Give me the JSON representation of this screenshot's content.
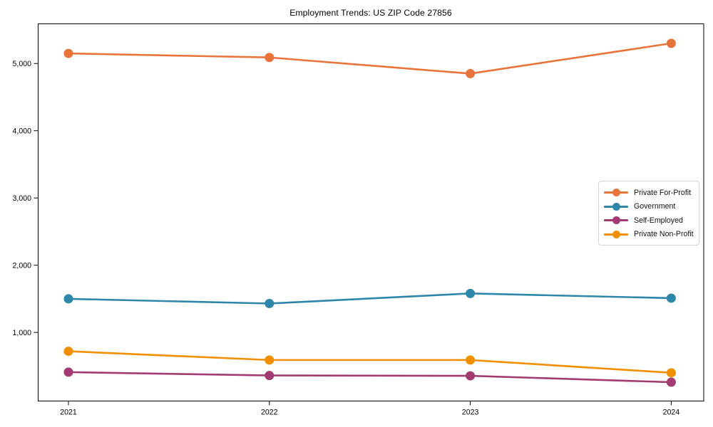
{
  "chart_data": {
    "type": "line",
    "title": "Employment Trends: US ZIP Code 27856",
    "xlabel": "",
    "ylabel": "",
    "x": [
      2021,
      2022,
      2023,
      2024
    ],
    "x_tick_labels": [
      "2021",
      "2022",
      "2023",
      "2024"
    ],
    "y_ticks": [
      1000,
      2000,
      3000,
      4000,
      5000
    ],
    "y_tick_labels": [
      "1,000",
      "2,000",
      "3,000",
      "4,000",
      "5,000"
    ],
    "ylim": [
      -20,
      5590
    ],
    "grid": false,
    "legend_position": "center-right",
    "marker": "circle",
    "series": [
      {
        "name": "Private For-Profit",
        "color": "#E8743B",
        "values": [
          5150,
          5090,
          4850,
          5300
        ]
      },
      {
        "name": "Government",
        "color": "#2E86AB",
        "values": [
          1500,
          1430,
          1580,
          1510
        ]
      },
      {
        "name": "Self-Employed",
        "color": "#A23B72",
        "values": [
          410,
          360,
          355,
          260
        ]
      },
      {
        "name": "Private Non-Profit",
        "color": "#F18F01",
        "values": [
          720,
          590,
          590,
          400
        ]
      }
    ],
    "axis_color": "#000000",
    "background_color": "#ffffff"
  }
}
